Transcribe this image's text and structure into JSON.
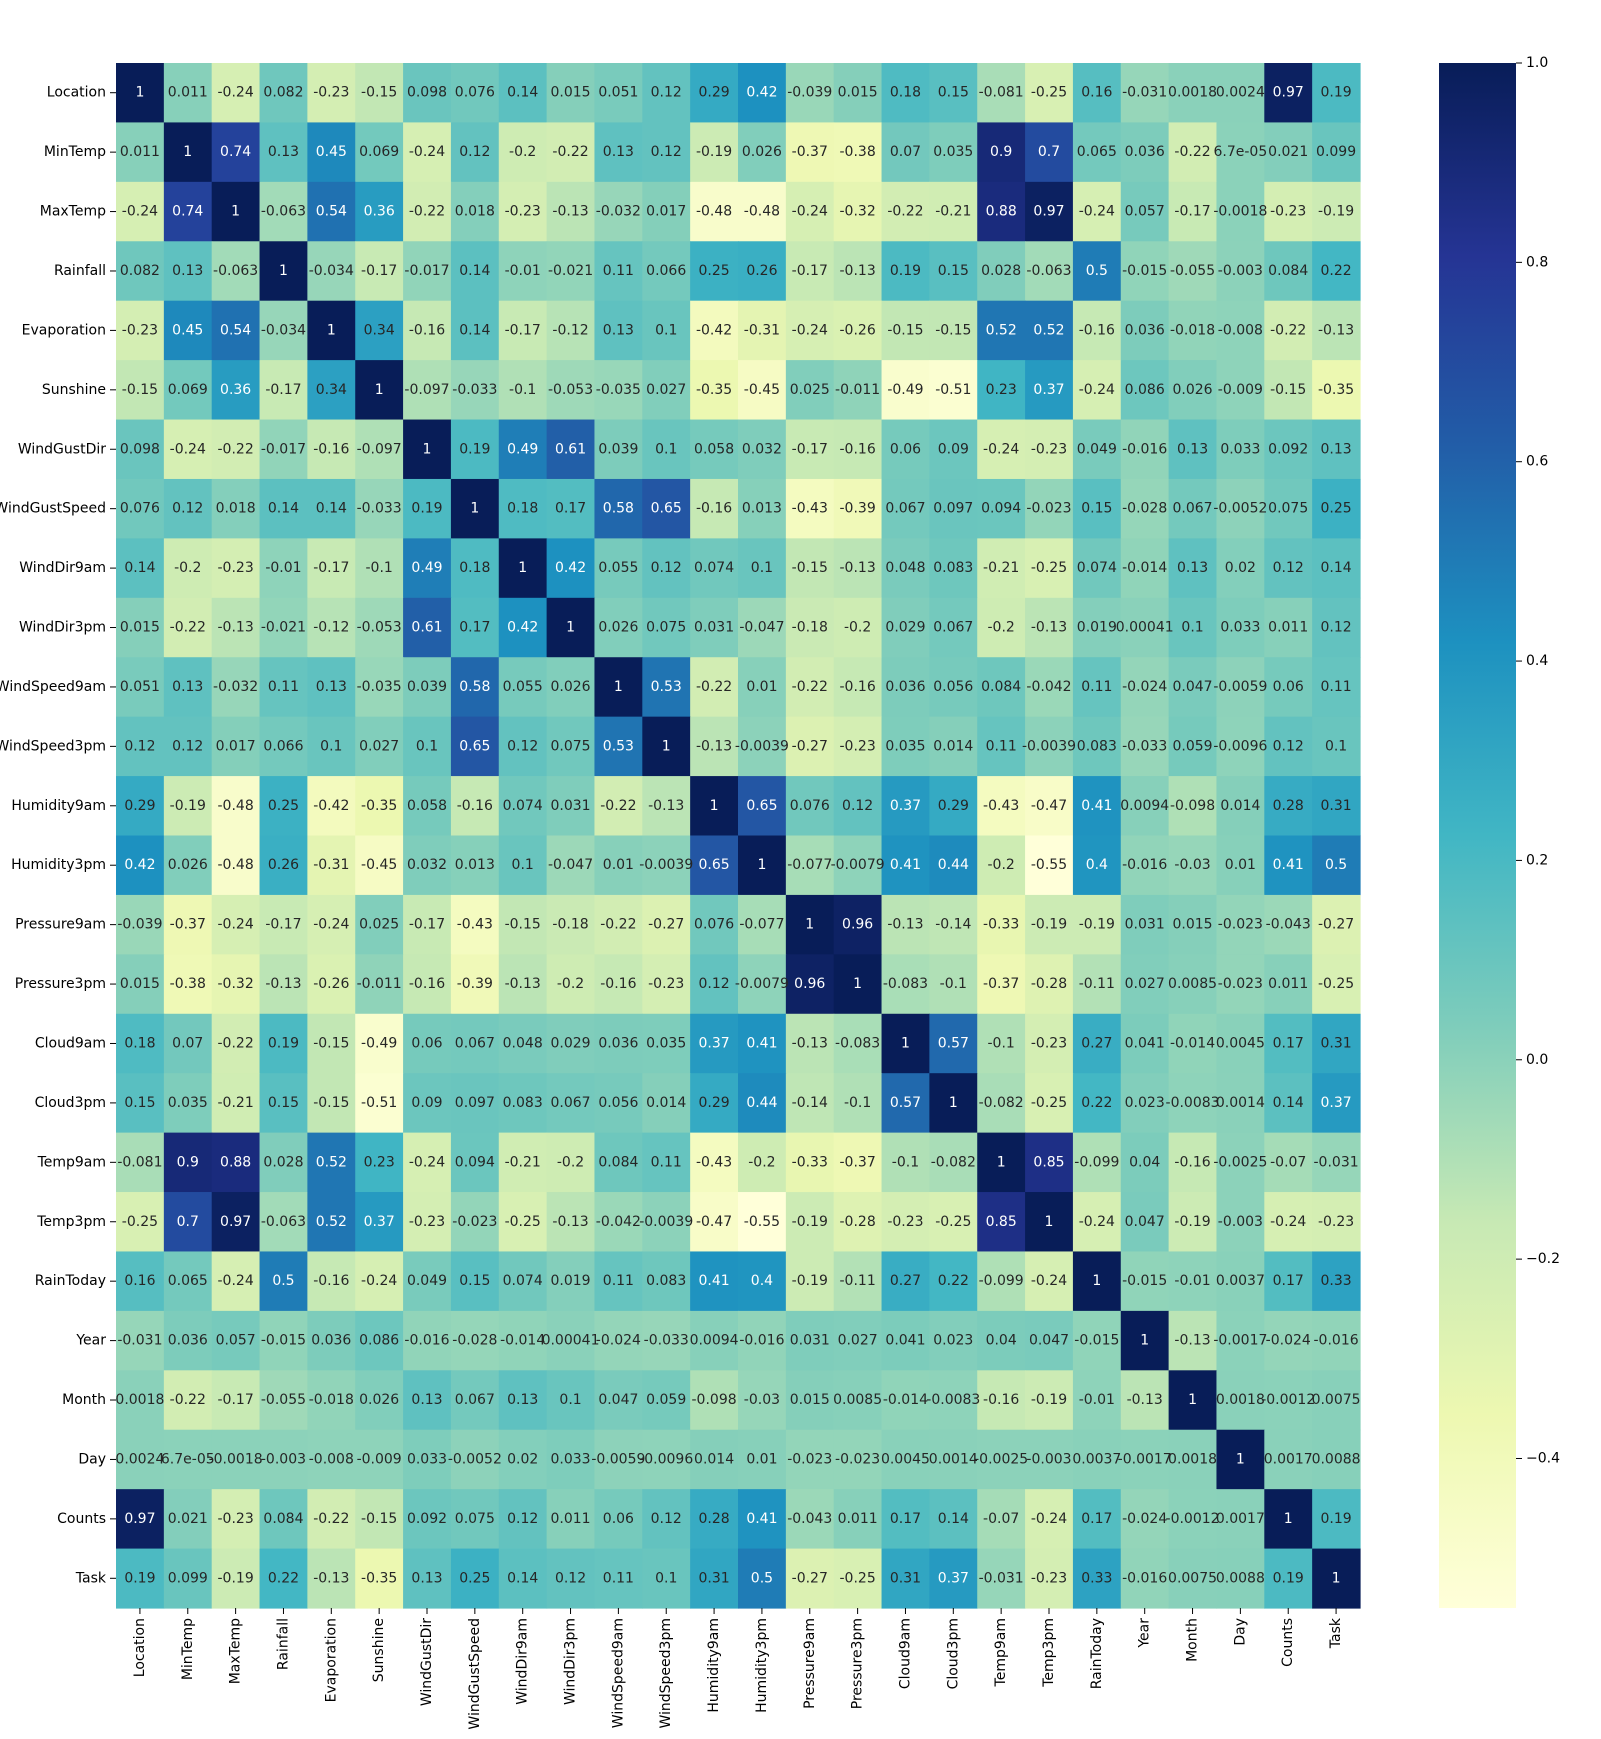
{
  "chart_data": {
    "type": "heatmap",
    "title": "",
    "xlabel": "",
    "ylabel": "",
    "labels": [
      "Location",
      "MinTemp",
      "MaxTemp",
      "Rainfall",
      "Evaporation",
      "Sunshine",
      "WindGustDir",
      "WindGustSpeed",
      "WindDir9am",
      "WindDir3pm",
      "WindSpeed9am",
      "WindSpeed3pm",
      "Humidity9am",
      "Humidity3pm",
      "Pressure9am",
      "Pressure3pm",
      "Cloud9am",
      "Cloud3pm",
      "Temp9am",
      "Temp3pm",
      "RainToday",
      "Year",
      "Month",
      "Day",
      "Counts",
      "Task"
    ],
    "matrix": [
      [
        1,
        0.011,
        -0.24,
        0.082,
        -0.23,
        -0.15,
        0.098,
        0.076,
        0.14,
        0.015,
        0.051,
        0.12,
        0.29,
        0.42,
        -0.039,
        0.015,
        0.18,
        0.15,
        -0.081,
        -0.25,
        0.16,
        -0.031,
        0.0018,
        0.0024,
        0.97,
        0.19
      ],
      [
        0.011,
        1,
        0.74,
        0.13,
        0.45,
        0.069,
        -0.24,
        0.12,
        -0.2,
        -0.22,
        0.13,
        0.12,
        -0.19,
        0.026,
        -0.37,
        -0.38,
        0.07,
        0.035,
        0.9,
        0.7,
        0.065,
        0.036,
        -0.22,
        6.7e-05,
        0.021,
        0.099
      ],
      [
        -0.24,
        0.74,
        1,
        -0.063,
        0.54,
        0.36,
        -0.22,
        0.018,
        -0.23,
        -0.13,
        -0.032,
        0.017,
        -0.48,
        -0.48,
        -0.24,
        -0.32,
        -0.22,
        -0.21,
        0.88,
        0.97,
        -0.24,
        0.057,
        -0.17,
        -0.0018,
        -0.23,
        -0.19
      ],
      [
        0.082,
        0.13,
        -0.063,
        1,
        -0.034,
        -0.17,
        -0.017,
        0.14,
        -0.01,
        -0.021,
        0.11,
        0.066,
        0.25,
        0.26,
        -0.17,
        -0.13,
        0.19,
        0.15,
        0.028,
        -0.063,
        0.5,
        -0.015,
        -0.055,
        -0.003,
        0.084,
        0.22
      ],
      [
        -0.23,
        0.45,
        0.54,
        -0.034,
        1,
        0.34,
        -0.16,
        0.14,
        -0.17,
        -0.12,
        0.13,
        0.1,
        -0.42,
        -0.31,
        -0.24,
        -0.26,
        -0.15,
        -0.15,
        0.52,
        0.52,
        -0.16,
        0.036,
        -0.018,
        -0.008,
        -0.22,
        -0.13
      ],
      [
        -0.15,
        0.069,
        0.36,
        -0.17,
        0.34,
        1,
        -0.097,
        -0.033,
        -0.1,
        -0.053,
        -0.035,
        0.027,
        -0.35,
        -0.45,
        0.025,
        -0.011,
        -0.49,
        -0.51,
        0.23,
        0.37,
        -0.24,
        0.086,
        0.026,
        -0.009,
        -0.15,
        -0.35
      ],
      [
        0.098,
        -0.24,
        -0.22,
        -0.017,
        -0.16,
        -0.097,
        1,
        0.19,
        0.49,
        0.61,
        0.039,
        0.1,
        0.058,
        0.032,
        -0.17,
        -0.16,
        0.06,
        0.09,
        -0.24,
        -0.23,
        0.049,
        -0.016,
        0.13,
        0.033,
        0.092,
        0.13
      ],
      [
        0.076,
        0.12,
        0.018,
        0.14,
        0.14,
        -0.033,
        0.19,
        1,
        0.18,
        0.17,
        0.58,
        0.65,
        -0.16,
        0.013,
        -0.43,
        -0.39,
        0.067,
        0.097,
        0.094,
        -0.023,
        0.15,
        -0.028,
        0.067,
        -0.0052,
        0.075,
        0.25
      ],
      [
        0.14,
        -0.2,
        -0.23,
        -0.01,
        -0.17,
        -0.1,
        0.49,
        0.18,
        1,
        0.42,
        0.055,
        0.12,
        0.074,
        0.1,
        -0.15,
        -0.13,
        0.048,
        0.083,
        -0.21,
        -0.25,
        0.074,
        -0.014,
        0.13,
        0.02,
        0.12,
        0.14
      ],
      [
        0.015,
        -0.22,
        -0.13,
        -0.021,
        -0.12,
        -0.053,
        0.61,
        0.17,
        0.42,
        1,
        0.026,
        0.075,
        0.031,
        -0.047,
        -0.18,
        -0.2,
        0.029,
        0.067,
        -0.2,
        -0.13,
        0.019,
        0.00041,
        0.1,
        0.033,
        0.011,
        0.12
      ],
      [
        0.051,
        0.13,
        -0.032,
        0.11,
        0.13,
        -0.035,
        0.039,
        0.58,
        0.055,
        0.026,
        1,
        0.53,
        -0.22,
        0.01,
        -0.22,
        -0.16,
        0.036,
        0.056,
        0.084,
        -0.042,
        0.11,
        -0.024,
        0.047,
        -0.0059,
        0.06,
        0.11
      ],
      [
        0.12,
        0.12,
        0.017,
        0.066,
        0.1,
        0.027,
        0.1,
        0.65,
        0.12,
        0.075,
        0.53,
        1,
        -0.13,
        -0.0039,
        -0.27,
        -0.23,
        0.035,
        0.014,
        0.11,
        -0.0039,
        0.083,
        -0.033,
        0.059,
        -0.0096,
        0.12,
        0.1
      ],
      [
        0.29,
        -0.19,
        -0.48,
        0.25,
        -0.42,
        -0.35,
        0.058,
        -0.16,
        0.074,
        0.031,
        -0.22,
        -0.13,
        1,
        0.65,
        0.076,
        0.12,
        0.37,
        0.29,
        -0.43,
        -0.47,
        0.41,
        0.0094,
        -0.098,
        0.014,
        0.28,
        0.31
      ],
      [
        0.42,
        0.026,
        -0.48,
        0.26,
        -0.31,
        -0.45,
        0.032,
        0.013,
        0.1,
        -0.047,
        0.01,
        -0.0039,
        0.65,
        1,
        -0.077,
        -0.0079,
        0.41,
        0.44,
        -0.2,
        -0.55,
        0.4,
        -0.016,
        -0.03,
        0.01,
        0.41,
        0.5
      ],
      [
        -0.039,
        -0.37,
        -0.24,
        -0.17,
        -0.24,
        0.025,
        -0.17,
        -0.43,
        -0.15,
        -0.18,
        -0.22,
        -0.27,
        0.076,
        -0.077,
        1,
        0.96,
        -0.13,
        -0.14,
        -0.33,
        -0.19,
        -0.19,
        0.031,
        0.015,
        -0.023,
        -0.043,
        -0.27
      ],
      [
        0.015,
        -0.38,
        -0.32,
        -0.13,
        -0.26,
        -0.011,
        -0.16,
        -0.39,
        -0.13,
        -0.2,
        -0.16,
        -0.23,
        0.12,
        -0.0079,
        0.96,
        1,
        -0.083,
        -0.1,
        -0.37,
        -0.28,
        -0.11,
        0.027,
        0.0085,
        -0.023,
        0.011,
        -0.25
      ],
      [
        0.18,
        0.07,
        -0.22,
        0.19,
        -0.15,
        -0.49,
        0.06,
        0.067,
        0.048,
        0.029,
        0.036,
        0.035,
        0.37,
        0.41,
        -0.13,
        -0.083,
        1,
        0.57,
        -0.1,
        -0.23,
        0.27,
        0.041,
        -0.014,
        0.0045,
        0.17,
        0.31
      ],
      [
        0.15,
        0.035,
        -0.21,
        0.15,
        -0.15,
        -0.51,
        0.09,
        0.097,
        0.083,
        0.067,
        0.056,
        0.014,
        0.29,
        0.44,
        -0.14,
        -0.1,
        0.57,
        1,
        -0.082,
        -0.25,
        0.22,
        0.023,
        -0.0083,
        0.0014,
        0.14,
        0.37
      ],
      [
        -0.081,
        0.9,
        0.88,
        0.028,
        0.52,
        0.23,
        -0.24,
        0.094,
        -0.21,
        -0.2,
        0.084,
        0.11,
        -0.43,
        -0.2,
        -0.33,
        -0.37,
        -0.1,
        -0.082,
        1,
        0.85,
        -0.099,
        0.04,
        -0.16,
        -0.0025,
        -0.07,
        -0.031
      ],
      [
        -0.25,
        0.7,
        0.97,
        -0.063,
        0.52,
        0.37,
        -0.23,
        -0.023,
        -0.25,
        -0.13,
        -0.042,
        -0.0039,
        -0.47,
        -0.55,
        -0.19,
        -0.28,
        -0.23,
        -0.25,
        0.85,
        1,
        -0.24,
        0.047,
        -0.19,
        -0.003,
        -0.24,
        -0.23
      ],
      [
        0.16,
        0.065,
        -0.24,
        0.5,
        -0.16,
        -0.24,
        0.049,
        0.15,
        0.074,
        0.019,
        0.11,
        0.083,
        0.41,
        0.4,
        -0.19,
        -0.11,
        0.27,
        0.22,
        -0.099,
        -0.24,
        1,
        -0.015,
        -0.01,
        0.0037,
        0.17,
        0.33
      ],
      [
        -0.031,
        0.036,
        0.057,
        -0.015,
        0.036,
        0.086,
        -0.016,
        -0.028,
        -0.014,
        0.00041,
        -0.024,
        -0.033,
        0.0094,
        -0.016,
        0.031,
        0.027,
        0.041,
        0.023,
        0.04,
        0.047,
        -0.015,
        1,
        -0.13,
        -0.0017,
        -0.024,
        -0.016
      ],
      [
        0.0018,
        -0.22,
        -0.17,
        -0.055,
        -0.018,
        0.026,
        0.13,
        0.067,
        0.13,
        0.1,
        0.047,
        0.059,
        -0.098,
        -0.03,
        0.015,
        0.0085,
        -0.014,
        -0.0083,
        -0.16,
        -0.19,
        -0.01,
        -0.13,
        1,
        0.0018,
        -0.0012,
        0.0075
      ],
      [
        0.0024,
        6.7e-05,
        -0.0018,
        -0.003,
        -0.008,
        -0.009,
        0.033,
        -0.0052,
        0.02,
        0.033,
        -0.0059,
        -0.0096,
        0.014,
        0.01,
        -0.023,
        -0.023,
        0.0045,
        0.0014,
        -0.0025,
        -0.003,
        0.0037,
        -0.0017,
        0.0018,
        1,
        0.0017,
        0.0088
      ],
      [
        0.97,
        0.021,
        -0.23,
        0.084,
        -0.22,
        -0.15,
        0.092,
        0.075,
        0.12,
        0.011,
        0.06,
        0.12,
        0.28,
        0.41,
        -0.043,
        0.011,
        0.17,
        0.14,
        -0.07,
        -0.24,
        0.17,
        -0.024,
        -0.0012,
        0.0017,
        1,
        0.19
      ],
      [
        0.19,
        0.099,
        -0.19,
        0.22,
        -0.13,
        -0.35,
        0.13,
        0.25,
        0.14,
        0.12,
        0.11,
        0.1,
        0.31,
        0.5,
        -0.27,
        -0.25,
        0.31,
        0.37,
        -0.031,
        -0.23,
        0.33,
        -0.016,
        0.0075,
        0.0088,
        0.19,
        1
      ]
    ],
    "color_range": [
      -0.55,
      1.0
    ],
    "colormap": "YlGnBu",
    "colorbar": {
      "ticks": [
        1.0,
        0.8,
        0.6,
        0.4,
        0.2,
        0.0,
        -0.2,
        -0.4
      ],
      "tick_labels": [
        "1.0",
        "0.8",
        "0.6",
        "0.4",
        "0.2",
        "0.0",
        "−0.2",
        "−0.4"
      ]
    },
    "colormap_stops": [
      "#ffffd9",
      "#edf8b1",
      "#c7e9b4",
      "#7fcdbb",
      "#41b6c4",
      "#1d91c0",
      "#225ea8",
      "#253494",
      "#081d58"
    ],
    "annotations": true,
    "grid": false,
    "legend": "colorbar-right"
  }
}
